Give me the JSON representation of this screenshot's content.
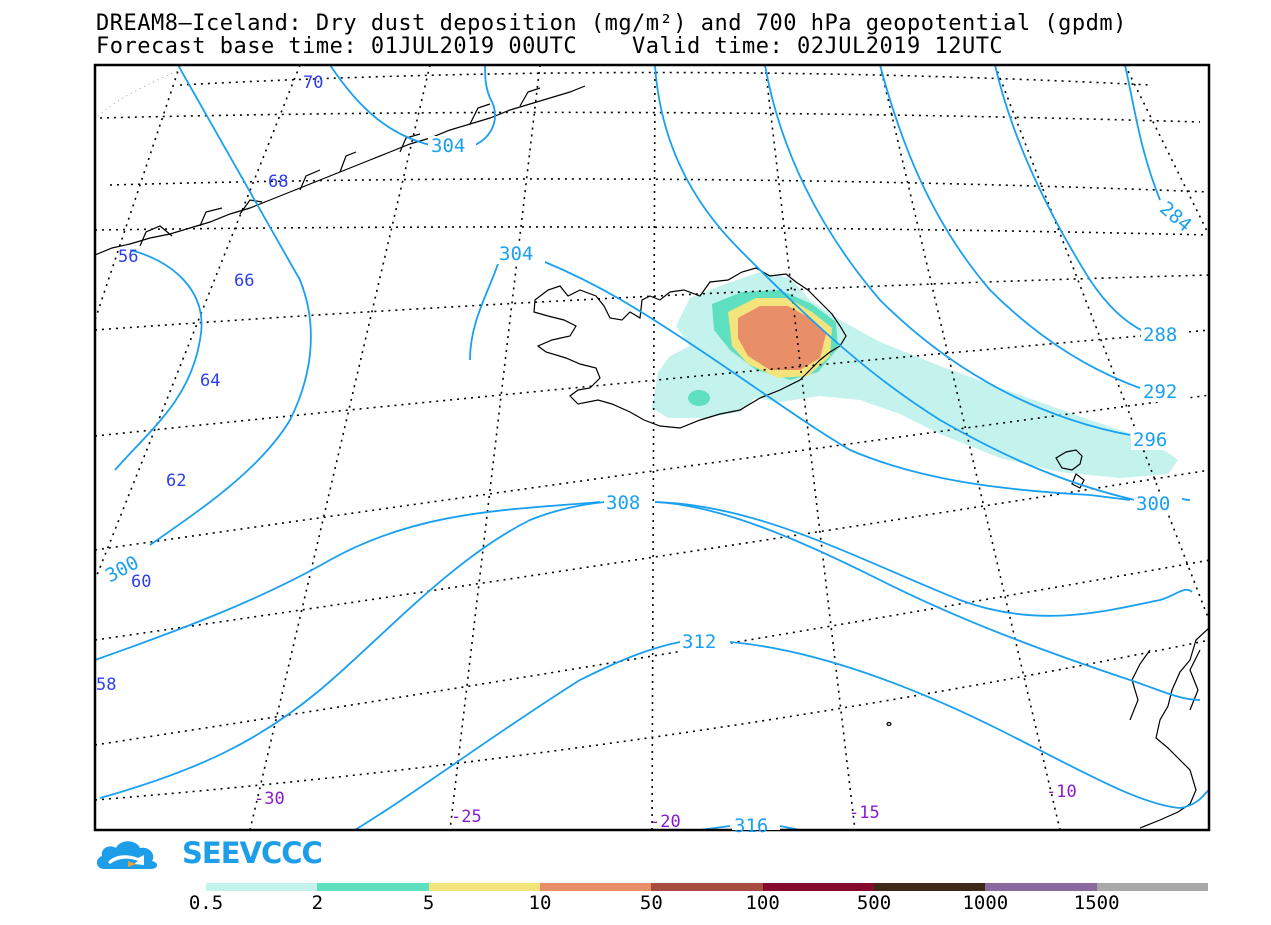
{
  "title_line1": "DREAM8—Iceland: Dry dust deposition (mg/m²) and 700 hPa geopotential (gpdm)",
  "title_line2": "Forecast base time: 01JUL2019 00UTC    Valid time: 02JUL2019 12UTC",
  "brand": "SEEVCCC",
  "colors": {
    "contour": "#1aa0f0",
    "lat_label": "#2d3ef0",
    "lon_label": "#8a1ad0",
    "frame": "#000000"
  },
  "geopotential_labels": [
    "304",
    "304",
    "284",
    "288",
    "292",
    "296",
    "300",
    "308",
    "300",
    "312",
    "316"
  ],
  "latitude_labels": [
    "70",
    "68",
    "66",
    "64",
    "62",
    "60",
    "58",
    "56"
  ],
  "longitude_labels": [
    "-30",
    "-25",
    "-20",
    "-15",
    "-10"
  ],
  "legend": {
    "labels": [
      "0.5",
      "2",
      "5",
      "10",
      "50",
      "100",
      "500",
      "1000",
      "1500"
    ],
    "colors": [
      "#c4f2ec",
      "#5ee0c0",
      "#f4e47c",
      "#e88e68",
      "#a84c40",
      "#860a2e",
      "#3e2816",
      "#8a6a9e",
      "#a8a8a8"
    ]
  }
}
